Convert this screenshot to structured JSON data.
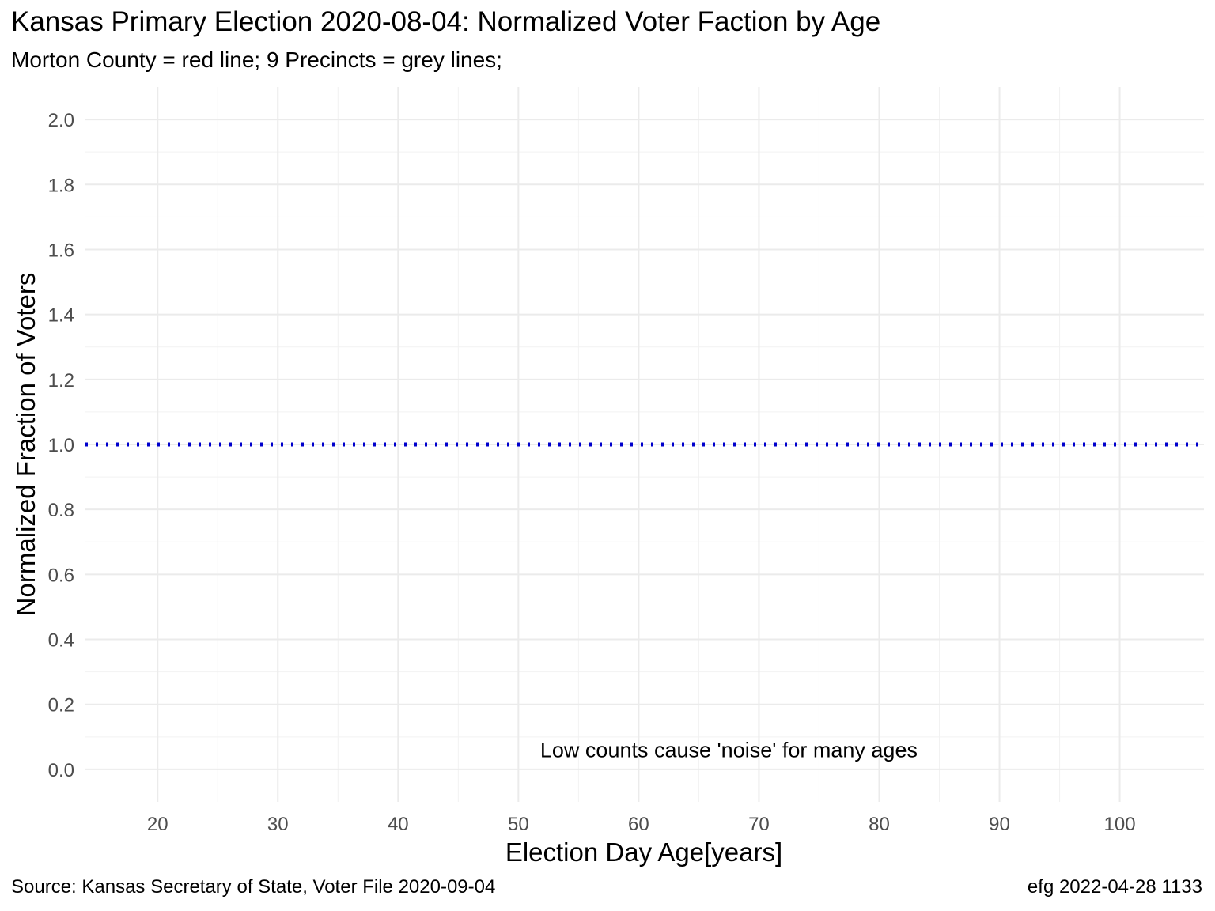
{
  "chart_data": {
    "type": "line",
    "title": "Kansas Primary Election 2020-08-04:  Normalized Voter Faction by Age",
    "subtitle": "Morton County = red line; 9 Precincts = grey lines;",
    "xlabel": "Election Day Age[years]",
    "ylabel": "Normalized Fraction of Voters",
    "xlim": [
      14,
      107
    ],
    "ylim": [
      -0.1,
      2.1
    ],
    "x_ticks": [
      20,
      30,
      40,
      50,
      60,
      70,
      80,
      90,
      100
    ],
    "y_ticks": [
      0.0,
      0.2,
      0.4,
      0.6,
      0.8,
      1.0,
      1.2,
      1.4,
      1.6,
      1.8,
      2.0
    ],
    "x_tick_labels": [
      "20",
      "30",
      "40",
      "50",
      "60",
      "70",
      "80",
      "90",
      "100"
    ],
    "y_tick_labels": [
      "0.0",
      "0.2",
      "0.4",
      "0.6",
      "0.8",
      "1.0",
      "1.2",
      "1.4",
      "1.6",
      "1.8",
      "2.0"
    ],
    "grid": true,
    "series": [],
    "reference_line": {
      "y": 1.0,
      "style": "dotted",
      "color": "#0000cc"
    },
    "annotation": {
      "text": "Low counts cause 'noise' for many ages",
      "x": 67.5,
      "y": 0.06
    },
    "caption_left": "Source:  Kansas Secretary of State, Voter File  2020-09-04",
    "caption_right": "efg 2022-04-28 1133"
  }
}
